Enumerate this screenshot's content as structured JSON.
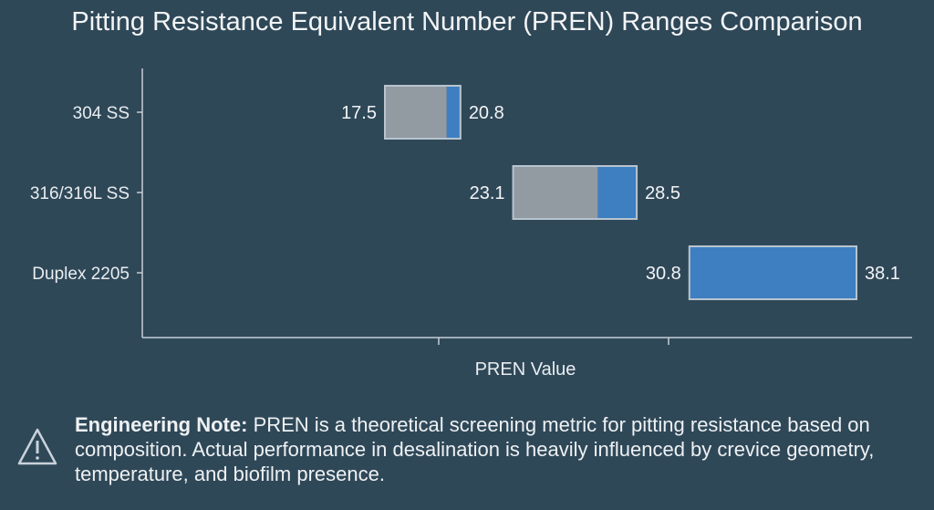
{
  "chart_data": {
    "type": "bar",
    "orientation": "horizontal-range",
    "title": "Pitting Resistance Equivalent Number (PREN) Ranges Comparison",
    "xlabel": "PREN Value",
    "ylabel": "",
    "categories": [
      "304 SS",
      "316/316L SS",
      "Duplex 2205"
    ],
    "ranges": [
      {
        "category": "304 SS",
        "min": 17.5,
        "max": 20.8,
        "gray_until": 20.2
      },
      {
        "category": "316/316L SS",
        "min": 23.1,
        "max": 28.5,
        "gray_until": 26.8
      },
      {
        "category": "Duplex 2205",
        "min": 30.8,
        "max": 38.1,
        "gray_until": 30.8
      }
    ],
    "colors": {
      "background": "#2f4858",
      "gray": "#939ba2",
      "blue": "#3d7fc1",
      "border": "#b8c4cf"
    },
    "grid": false
  },
  "note": {
    "icon": "warning-triangle-icon",
    "label": "Engineering Note:",
    "text": " PREN is a theoretical screening metric for pitting resistance based on composition. Actual performance in desalination is heavily influenced by crevice geometry, temperature, and biofilm presence."
  }
}
